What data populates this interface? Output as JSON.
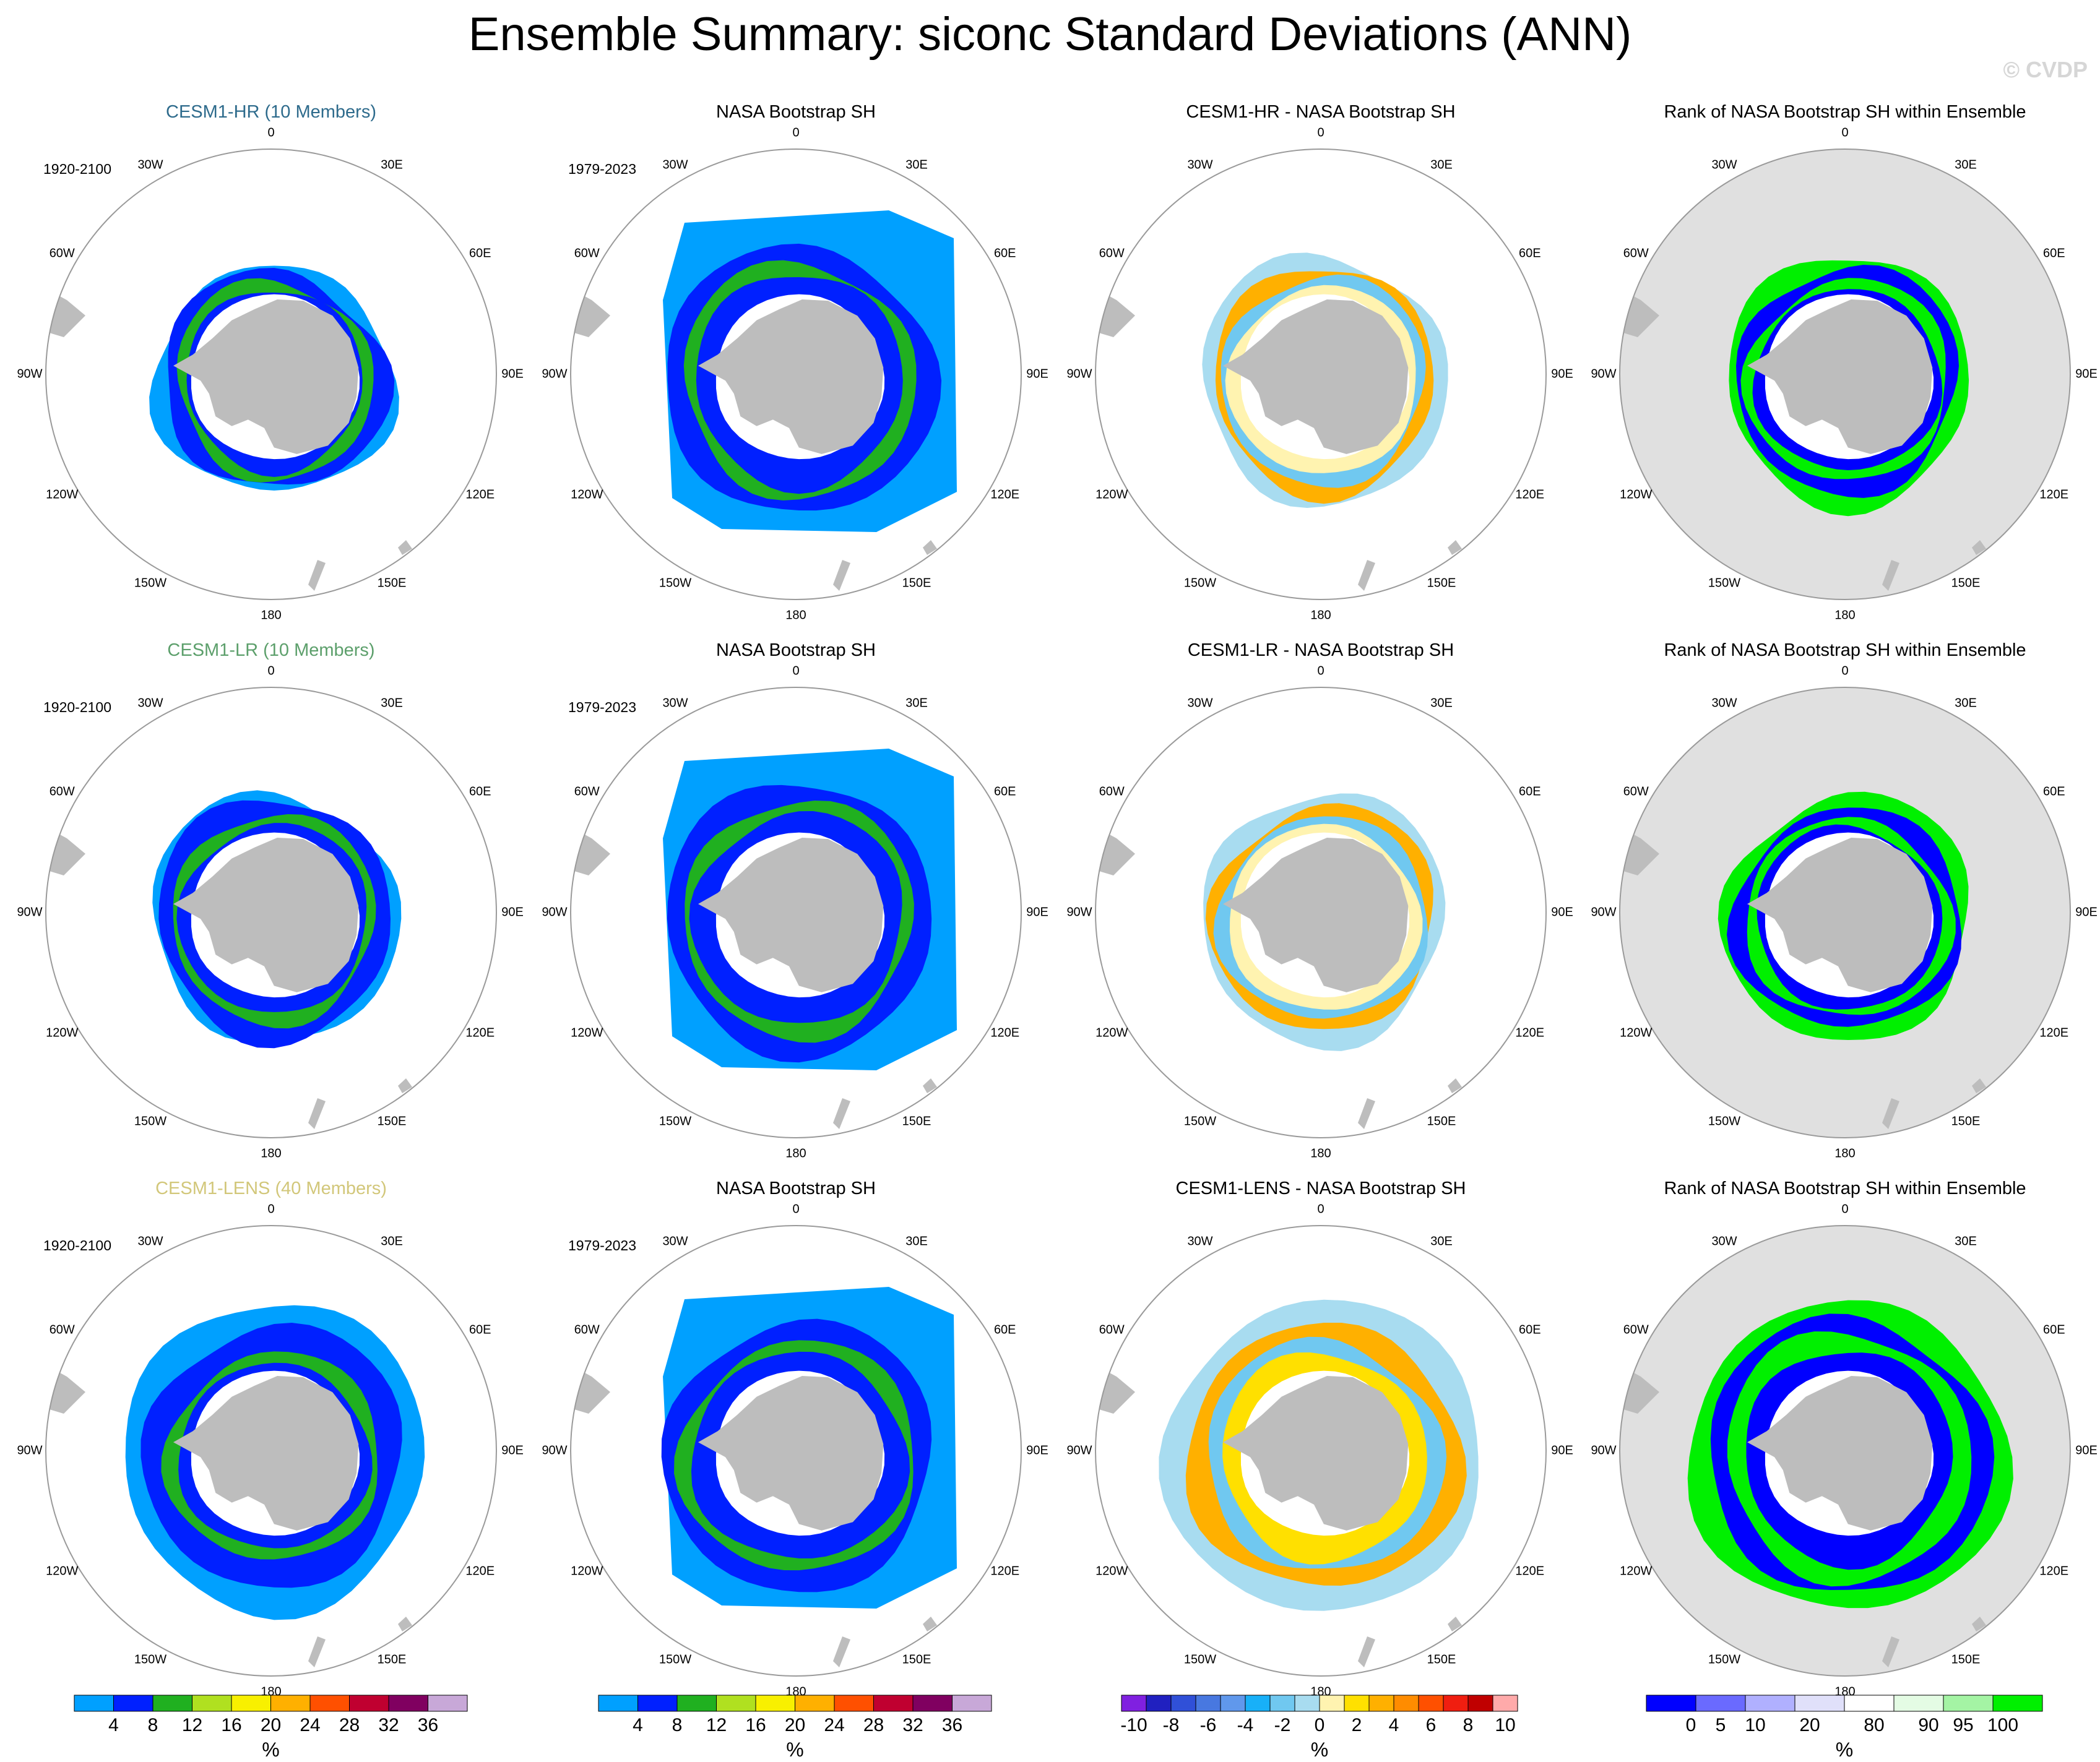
{
  "title": "Ensemble Summary: siconc Standard Deviations (ANN)",
  "copyright": "© CVDP",
  "lon_labels": [
    "0",
    "30E",
    "60E",
    "90E",
    "120E",
    "150E",
    "180",
    "150W",
    "120W",
    "90W",
    "60W",
    "30W"
  ],
  "colors": {
    "land": "#bdbdbd",
    "ocean": "#ffffff",
    "rank_background": "#e0e0e0",
    "circle": "#9a9a9a"
  },
  "rows": [
    {
      "model": "CESM1-HR (10 Members)",
      "model_color": "#2e6b8c",
      "model_period": "1920-2100",
      "obs_title": "NASA Bootstrap SH",
      "obs_period": "1979-2023",
      "diff_title": "CESM1-HR - NASA Bootstrap SH",
      "rank_title": "Rank of NASA Bootstrap SH within Ensemble"
    },
    {
      "model": "CESM1-LR (10 Members)",
      "model_color": "#5c9f6b",
      "model_period": "1920-2100",
      "obs_title": "NASA Bootstrap SH",
      "obs_period": "1979-2023",
      "diff_title": "CESM1-LR - NASA Bootstrap SH",
      "rank_title": "Rank of NASA Bootstrap SH within Ensemble"
    },
    {
      "model": "CESM1-LENS (40 Members)",
      "model_color": "#d2c77a",
      "model_period": "1920-2100",
      "obs_title": "NASA Bootstrap SH",
      "obs_period": "1979-2023",
      "diff_title": "CESM1-LENS - NASA Bootstrap SH",
      "rank_title": "Rank of NASA Bootstrap SH within Ensemble"
    }
  ],
  "colorbars": {
    "std": {
      "colors": [
        "#00a0ff",
        "#0020ff",
        "#20b020",
        "#b0e020",
        "#f8f000",
        "#ffb000",
        "#ff5000",
        "#c00030",
        "#800060",
        "#c8a8d8"
      ],
      "ticks": [
        "4",
        "8",
        "12",
        "16",
        "20",
        "24",
        "28",
        "32",
        "36"
      ],
      "unit": "%"
    },
    "diff": {
      "colors": [
        "#8020e0",
        "#2020c0",
        "#3050d8",
        "#4878e0",
        "#6098ec",
        "#18b0f8",
        "#70c8f0",
        "#a8dcf0",
        "#fff3b0",
        "#ffe000",
        "#ffb000",
        "#ff8c00",
        "#ff5000",
        "#f01e10",
        "#c00000",
        "#ffaaaa"
      ],
      "ticks": [
        "-10",
        "-8",
        "-6",
        "-4",
        "-2",
        "0",
        "2",
        "4",
        "6",
        "8",
        "10"
      ],
      "unit": "%"
    },
    "rank": {
      "colors": [
        "#0000ff",
        "#6a6aff",
        "#b0b0ff",
        "#e0e0fa",
        "#ffffff",
        "#e4fce4",
        "#a4f4a4",
        "#00f000"
      ],
      "ticks": [
        "0",
        "5",
        "10",
        "20",
        "80",
        "90",
        "95",
        "100"
      ],
      "unit": "%"
    }
  }
}
